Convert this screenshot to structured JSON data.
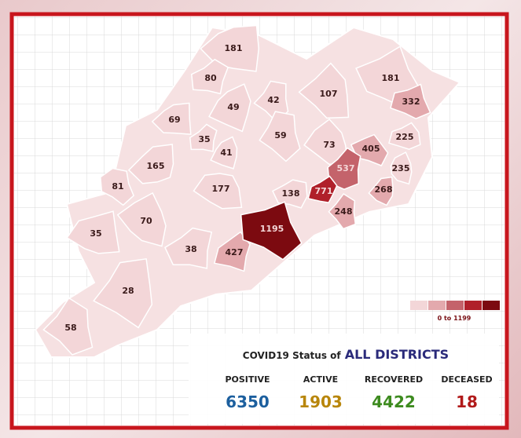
{
  "map": {
    "districts": [
      181,
      80,
      49,
      42,
      107,
      181,
      332,
      69,
      35,
      41,
      59,
      73,
      405,
      225,
      165,
      537,
      235,
      81,
      177,
      138,
      771,
      268,
      248,
      70,
      1195,
      35,
      38,
      427,
      28,
      58
    ],
    "legend": {
      "label": "0 to 1199",
      "colors": [
        "#f3d6d8",
        "#e3a9ad",
        "#c4636b",
        "#b0202a",
        "#7c0a10"
      ]
    }
  },
  "status": {
    "title_prefix": "COVID19 Status of",
    "title_emphasis": "ALL DISTRICTS",
    "stats": [
      {
        "label": "POSITIVE",
        "value": "6350",
        "color": "#1c5f9e"
      },
      {
        "label": "ACTIVE",
        "value": "1903",
        "color": "#b8860b"
      },
      {
        "label": "RECOVERED",
        "value": "4422",
        "color": "#3d8b1f"
      },
      {
        "label": "DECEASED",
        "value": "18",
        "color": "#b11a1a"
      }
    ]
  }
}
